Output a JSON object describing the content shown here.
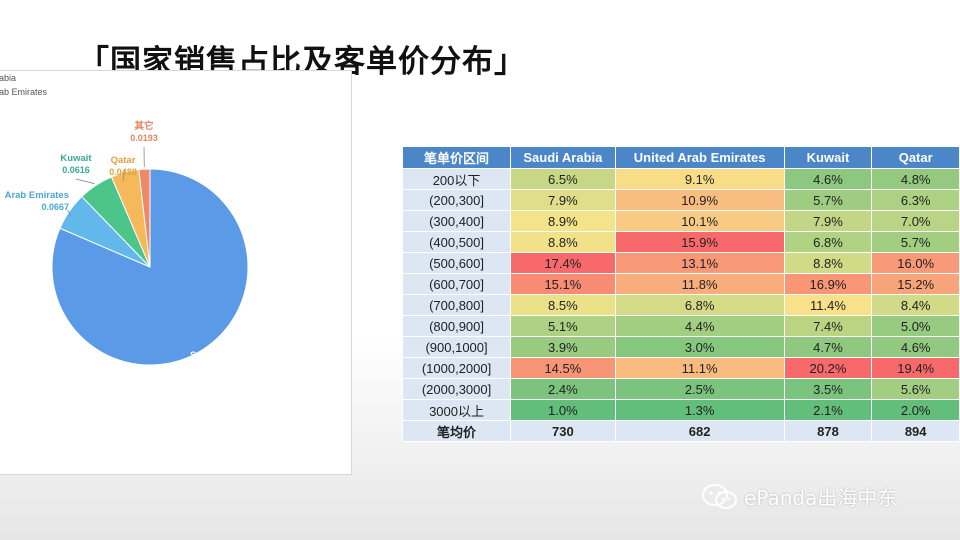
{
  "slide": {
    "title": "「国家销售占比及客单价分布」",
    "watermark": "ePanda出海中东"
  },
  "legend": [
    "rabia",
    "rab Emirates"
  ],
  "colors": {
    "header_blue": "#4a86c8",
    "row_label_bg": "#dde6f3",
    "heat_low": "#63be7b",
    "heat_mid": "#f8e48a",
    "heat_high": "#f8696b",
    "pie_saudi": "#5b9ae6",
    "pie_uae": "#62b8ea",
    "pie_kuwait": "#4cc58a",
    "pie_qatar": "#f5b95a",
    "pie_other": "#ee8866"
  },
  "chart_data": [
    {
      "type": "pie",
      "slices": [
        {
          "name": "Saudi Arabia",
          "label": "Sa",
          "value": 0.8636,
          "value_label": "",
          "color": "#5b9ae6"
        },
        {
          "name": "United Arab Emirates",
          "label": "Arab Emirates",
          "value": 0.0667,
          "value_label": "0.0667",
          "color": "#62b8ea"
        },
        {
          "name": "Kuwait",
          "label": "Kuwait",
          "value": 0.0616,
          "value_label": "0.0616",
          "color": "#4cc58a"
        },
        {
          "name": "Qatar",
          "label": "Qatar",
          "value": 0.0488,
          "value_label": "0.0488",
          "color": "#f5b95a"
        },
        {
          "name": "其它",
          "label": "其它",
          "value": 0.0193,
          "value_label": "0.0193",
          "color": "#ee8866"
        }
      ]
    },
    {
      "type": "table",
      "columns": [
        "笔单价区间",
        "Saudi Arabia",
        "United Arab Emirates",
        "Kuwait",
        "Qatar"
      ],
      "rows": [
        {
          "label": "200以下",
          "values": [
            6.5,
            9.1,
            4.6,
            4.8
          ],
          "text": [
            "6.5%",
            "9.1%",
            "4.6%",
            "4.8%"
          ]
        },
        {
          "label": "(200,300]",
          "values": [
            7.9,
            10.9,
            5.7,
            6.3
          ],
          "text": [
            "7.9%",
            "10.9%",
            "5.7%",
            "6.3%"
          ]
        },
        {
          "label": "(300,400]",
          "values": [
            8.9,
            10.1,
            7.9,
            7.0
          ],
          "text": [
            "8.9%",
            "10.1%",
            "7.9%",
            "7.0%"
          ]
        },
        {
          "label": "(400,500]",
          "values": [
            8.8,
            15.9,
            6.8,
            5.7
          ],
          "text": [
            "8.8%",
            "15.9%",
            "6.8%",
            "5.7%"
          ]
        },
        {
          "label": "(500,600]",
          "values": [
            17.4,
            13.1,
            8.8,
            16.0
          ],
          "text": [
            "17.4%",
            "13.1%",
            "8.8%",
            "16.0%"
          ]
        },
        {
          "label": "(600,700]",
          "values": [
            15.1,
            11.8,
            16.9,
            15.2
          ],
          "text": [
            "15.1%",
            "11.8%",
            "16.9%",
            "15.2%"
          ]
        },
        {
          "label": "(700,800]",
          "values": [
            8.5,
            6.8,
            11.4,
            8.4
          ],
          "text": [
            "8.5%",
            "6.8%",
            "11.4%",
            "8.4%"
          ]
        },
        {
          "label": "(800,900]",
          "values": [
            5.1,
            4.4,
            7.4,
            5.0
          ],
          "text": [
            "5.1%",
            "4.4%",
            "7.4%",
            "5.0%"
          ]
        },
        {
          "label": "(900,1000]",
          "values": [
            3.9,
            3.0,
            4.7,
            4.6
          ],
          "text": [
            "3.9%",
            "3.0%",
            "4.7%",
            "4.6%"
          ]
        },
        {
          "label": "(1000,2000]",
          "values": [
            14.5,
            11.1,
            20.2,
            19.4
          ],
          "text": [
            "14.5%",
            "11.1%",
            "20.2%",
            "19.4%"
          ]
        },
        {
          "label": "(2000,3000]",
          "values": [
            2.4,
            2.5,
            3.5,
            5.6
          ],
          "text": [
            "2.4%",
            "2.5%",
            "3.5%",
            "5.6%"
          ]
        },
        {
          "label": "3000以上",
          "values": [
            1.0,
            1.3,
            2.1,
            2.0
          ],
          "text": [
            "1.0%",
            "1.3%",
            "2.1%",
            "2.0%"
          ]
        }
      ],
      "summary": {
        "label": "笔均价",
        "values": [
          "730",
          "682",
          "878",
          "894"
        ]
      }
    }
  ]
}
